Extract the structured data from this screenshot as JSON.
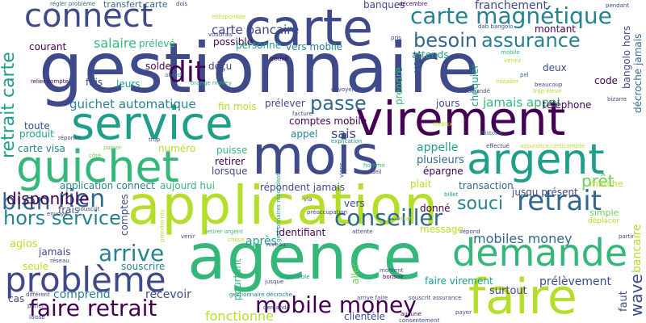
{
  "background": "#ffffff",
  "palette": {
    "deep_purple": "#440154",
    "indigo": "#3e4a89",
    "blue": "#31688e",
    "teal": "#26828e",
    "green": "#1f9e89",
    "lime_green": "#35b779",
    "light_green": "#6ece58",
    "yellow_green": "#b5de2b",
    "yellow": "#fde725"
  },
  "words": [
    {
      "text": "gestionnaire",
      "color": "#3e4a89"
    },
    {
      "text": "agence",
      "color": "#35b779"
    },
    {
      "text": "application",
      "color": "#b5de2b"
    },
    {
      "text": "mois",
      "color": "#3e4a89"
    },
    {
      "text": "carte",
      "color": "#3e4a89"
    },
    {
      "text": "connect",
      "color": "#3e4a89"
    },
    {
      "text": "service",
      "color": "#1f9e89"
    },
    {
      "text": "virement",
      "color": "#440154"
    },
    {
      "text": "guichet",
      "color": "#35b779"
    },
    {
      "text": "argent",
      "color": "#1f9e89"
    },
    {
      "text": "faire",
      "color": "#b5de2b"
    },
    {
      "text": "demande",
      "color": "#35b779"
    },
    {
      "text": "problème",
      "color": "#3e4a89"
    },
    {
      "text": "carte magnétique",
      "color": "#26828e"
    },
    {
      "text": "faire retrait",
      "color": "#440154"
    },
    {
      "text": "mobile money",
      "color": "#440154"
    },
    {
      "text": "retrait",
      "color": "#31688e"
    },
    {
      "text": "dit",
      "color": "#440154"
    },
    {
      "text": "passe",
      "color": "#31688e"
    },
    {
      "text": "rien",
      "color": "#31688e"
    },
    {
      "text": "bien",
      "color": "#31688e"
    },
    {
      "text": "conseiller",
      "color": "#31688e"
    },
    {
      "text": "hors service",
      "color": "#26828e"
    },
    {
      "text": "disponible",
      "color": "#440154"
    },
    {
      "text": "arrive",
      "color": "#26828e"
    },
    {
      "text": "besoin",
      "color": "#31688e"
    },
    {
      "text": "assurance",
      "color": "#26828e"
    },
    {
      "text": "retrait carte",
      "color": "#1f9e89"
    },
    {
      "text": "carte bancaire",
      "color": "#3e4a89"
    },
    {
      "text": "salaire",
      "color": "#35b779"
    },
    {
      "text": "mobiles money",
      "color": "#31688e"
    },
    {
      "text": "souci",
      "color": "#26828e"
    },
    {
      "text": "prêt",
      "color": "#6ece58"
    },
    {
      "text": "guichet automatique",
      "color": "#26828e"
    },
    {
      "text": "jamais appel",
      "color": "#35b779"
    },
    {
      "text": "fonctionne",
      "color": "#b5de2b"
    },
    {
      "text": "comprend",
      "color": "#26828e"
    },
    {
      "text": "recevoir",
      "color": "#3e4a89"
    },
    {
      "text": "prélèvement",
      "color": "#3e4a89"
    },
    {
      "text": "surtout",
      "color": "#3e4a89"
    },
    {
      "text": "wave",
      "color": "#3e4a89"
    },
    {
      "text": "bancaire",
      "color": "#b5de2b"
    },
    {
      "text": "transfert carte",
      "color": "#31688e"
    },
    {
      "text": "franchement",
      "color": "#3e4a89"
    },
    {
      "text": "banques",
      "color": "#3e4a89"
    },
    {
      "text": "possible",
      "color": "#440154"
    },
    {
      "text": "prélevé",
      "color": "#35b779"
    },
    {
      "text": "courant",
      "color": "#440154"
    },
    {
      "text": "solde",
      "color": "#440154"
    },
    {
      "text": "déçu",
      "color": "#3e4a89"
    },
    {
      "text": "personne",
      "color": "#1f9e89"
    },
    {
      "text": "vers mobile",
      "color": "#26828e"
    },
    {
      "text": "attends",
      "color": "#1f9e89"
    },
    {
      "text": "montant",
      "color": "#440154"
    },
    {
      "text": "leurs",
      "color": "#1f9e89"
    },
    {
      "text": "fais",
      "color": "#3e4a89"
    },
    {
      "text": "prélever",
      "color": "#3e4a89"
    },
    {
      "text": "fin mois",
      "color": "#b5de2b"
    },
    {
      "text": "comptes mobile",
      "color": "#440154"
    },
    {
      "text": "sais",
      "color": "#3e4a89"
    },
    {
      "text": "appel",
      "color": "#26828e"
    },
    {
      "text": "jours",
      "color": "#3e4a89"
    },
    {
      "text": "téléphone",
      "color": "#440154"
    },
    {
      "text": "toute",
      "color": "#3e4a89"
    },
    {
      "text": "produit",
      "color": "#1f9e89"
    },
    {
      "text": "carte visa",
      "color": "#26828e"
    },
    {
      "text": "numéro",
      "color": "#b5de2b"
    },
    {
      "text": "puisse",
      "color": "#35b779"
    },
    {
      "text": "retirer",
      "color": "#440154"
    },
    {
      "text": "lorsque",
      "color": "#3e4a89"
    },
    {
      "text": "appelle",
      "color": "#1f9e89"
    },
    {
      "text": "plusieurs",
      "color": "#31688e"
    },
    {
      "text": "épargne",
      "color": "#440154"
    },
    {
      "text": "plait",
      "color": "#b5de2b"
    },
    {
      "text": "transaction",
      "color": "#31688e"
    },
    {
      "text": "jusqu présent",
      "color": "#3e4a89"
    },
    {
      "text": "application connect",
      "color": "#26828e"
    },
    {
      "text": "aujourd hui",
      "color": "#35b779"
    },
    {
      "text": "répondent jamais",
      "color": "#3e4a89"
    },
    {
      "text": "vers",
      "color": "#3e4a89"
    },
    {
      "text": "frais",
      "color": "#3e4a89"
    },
    {
      "text": "comptes",
      "color": "#3e4a89"
    },
    {
      "text": "donné",
      "color": "#440154"
    },
    {
      "text": "identifiant",
      "color": "#440154"
    },
    {
      "text": "message",
      "color": "#b5de2b"
    },
    {
      "text": "après",
      "color": "#1f9e89"
    },
    {
      "text": "agios",
      "color": "#b5de2b"
    },
    {
      "text": "jamais",
      "color": "#3e4a89"
    },
    {
      "text": "souscrire",
      "color": "#26828e"
    },
    {
      "text": "seule",
      "color": "#b5de2b"
    },
    {
      "text": "pourtant",
      "color": "#35b779"
    },
    {
      "text": "cas",
      "color": "#3e4a89"
    },
    {
      "text": "clientèle",
      "color": "#3e4a89"
    },
    {
      "text": "faire virement",
      "color": "#1f9e89"
    },
    {
      "text": "aller",
      "color": "#6ece58"
    },
    {
      "text": "faut",
      "color": "#3e4a89"
    },
    {
      "text": "bangolo hors",
      "color": "#3e4a89"
    },
    {
      "text": "décroche jamais",
      "color": "#31688e"
    },
    {
      "text": "deux",
      "color": "#3e4a89"
    },
    {
      "text": "code",
      "color": "#440154"
    },
    {
      "text": "veut",
      "color": "#31688e"
    },
    {
      "text": "prendre",
      "color": "#35b779"
    },
    {
      "text": "chéquier",
      "color": "#1f9e89"
    },
    {
      "text": "marche",
      "color": "#b5de2b"
    },
    {
      "text": "simple",
      "color": "#6ece58"
    },
    {
      "text": "déplacer",
      "color": "#b5de2b"
    },
    {
      "text": "mieux",
      "color": "#b5de2b"
    },
    {
      "text": "régler problème",
      "color": "#31688e"
    },
    {
      "text": "dois",
      "color": "#3e4a89"
    },
    {
      "text": "indisponible",
      "color": "#b5de2b"
    },
    {
      "text": "décembre",
      "color": "#440154"
    },
    {
      "text": "pendant",
      "color": "#3e4a89"
    },
    {
      "text": "dab bangolo",
      "color": "#3e4a89"
    },
    {
      "text": "orange money",
      "color": "#35b779"
    },
    {
      "text": "voudrais",
      "color": "#3e4a89"
    },
    {
      "text": "abord",
      "color": "#26828e"
    },
    {
      "text": "trouvé",
      "color": "#440154"
    },
    {
      "text": "pris",
      "color": "#3e4a89"
    },
    {
      "text": "venez",
      "color": "#b5de2b"
    },
    {
      "text": "pel",
      "color": "#31688e"
    },
    {
      "text": "mobile",
      "color": "#35b779"
    },
    {
      "text": "installer",
      "color": "#b5de2b"
    },
    {
      "text": "beaucoup",
      "color": "#3e4a89"
    },
    {
      "text": "trop élevé",
      "color": "#b5de2b"
    },
    {
      "text": "envoyer",
      "color": "#3e4a89"
    },
    {
      "text": "demandé",
      "color": "#3e4a89"
    },
    {
      "text": "aucune",
      "color": "#440154"
    },
    {
      "text": "réponse",
      "color": "#3e4a89"
    },
    {
      "text": "papier",
      "color": "#6ece58"
    },
    {
      "text": "côté",
      "color": "#6ece58"
    },
    {
      "text": "trop",
      "color": "#3e4a89"
    },
    {
      "text": "relier compte",
      "color": "#440154"
    },
    {
      "text": "histoire",
      "color": "#26828e"
    },
    {
      "text": "facture",
      "color": "#3e4a89"
    },
    {
      "text": "explication",
      "color": "#1f9e89"
    },
    {
      "text": "effectué",
      "color": "#3e4a89"
    },
    {
      "text": "assurance certicompte",
      "color": "#b5de2b"
    },
    {
      "text": "homme",
      "color": "#35b779"
    },
    {
      "text": "accueil",
      "color": "#3e4a89"
    },
    {
      "text": "viens",
      "color": "#3e4a89"
    },
    {
      "text": "billet",
      "color": "#1f9e89"
    },
    {
      "text": "via",
      "color": "#3e4a89"
    },
    {
      "text": "envoyé",
      "color": "#3e4a89"
    },
    {
      "text": "souscrit",
      "color": "#3e4a89"
    },
    {
      "text": "contrat",
      "color": "#b5de2b"
    },
    {
      "text": "préoccupation",
      "color": "#3e4a89"
    },
    {
      "text": "gestionnaires répondent",
      "color": "#1f9e89"
    },
    {
      "text": "prendre rdv",
      "color": "#b5de2b"
    },
    {
      "text": "venir",
      "color": "#3e4a89"
    },
    {
      "text": "retirer argent",
      "color": "#35b779"
    },
    {
      "text": "chose",
      "color": "#b5de2b"
    },
    {
      "text": "attente",
      "color": "#3e4a89"
    },
    {
      "text": "répond",
      "color": "#3e4a89"
    },
    {
      "text": "niveau",
      "color": "#3e4a89"
    },
    {
      "text": "jusque",
      "color": "#3e4a89"
    },
    {
      "text": "impossible",
      "color": "#1f9e89"
    },
    {
      "text": "moment",
      "color": "#3e4a89"
    },
    {
      "text": "bonsoir",
      "color": "#440154"
    },
    {
      "text": "payer",
      "color": "#3e4a89"
    },
    {
      "text": "consentement",
      "color": "#3e4a89"
    },
    {
      "text": "réseau",
      "color": "#3e4a89"
    },
    {
      "text": "laisse",
      "color": "#3e4a89"
    },
    {
      "text": "parler",
      "color": "#3e4a89"
    },
    {
      "text": "différent",
      "color": "#3e4a89"
    },
    {
      "text": "gestionnaire décroche",
      "color": "#26828e"
    },
    {
      "text": "arrive faire",
      "color": "#3e4a89"
    },
    {
      "text": "souscrit assurance",
      "color": "#3e4a89"
    },
    {
      "text": "demande",
      "color": "#3e4a89"
    },
    {
      "text": "partir",
      "color": "#3e4a89"
    },
    {
      "text": "bizarre",
      "color": "#3e4a89"
    }
  ]
}
